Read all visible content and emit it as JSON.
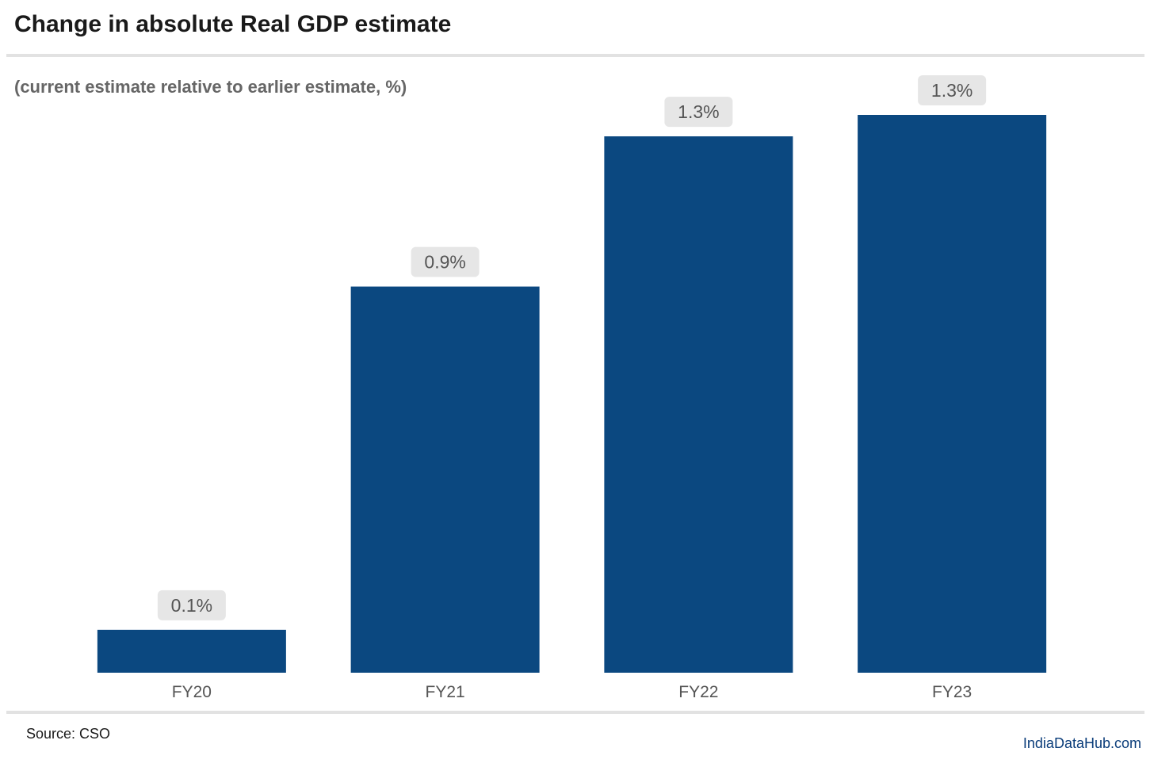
{
  "header": {
    "title": "Change in absolute Real GDP estimate",
    "subtitle": "(current estimate relative to earlier estimate, %)"
  },
  "footer": {
    "source": "Source: CSO",
    "brand": "IndiaDataHub.com"
  },
  "colors": {
    "bar": "#0b4880",
    "label_box": "#e6e6e6",
    "label_text": "#555555",
    "tick_text": "#555555"
  },
  "chart_data": {
    "type": "bar",
    "title": "Change in absolute Real GDP estimate",
    "subtitle": "(current estimate relative to earlier estimate, %)",
    "categories": [
      "FY20",
      "FY21",
      "FY22",
      "FY23"
    ],
    "values": [
      0.1,
      0.9,
      1.25,
      1.3
    ],
    "data_labels": [
      "0.1%",
      "0.9%",
      "1.3%",
      "1.3%"
    ],
    "xlabel": "",
    "ylabel": "",
    "ylim": [
      0,
      1.3
    ],
    "grid": false,
    "legend": "none"
  }
}
